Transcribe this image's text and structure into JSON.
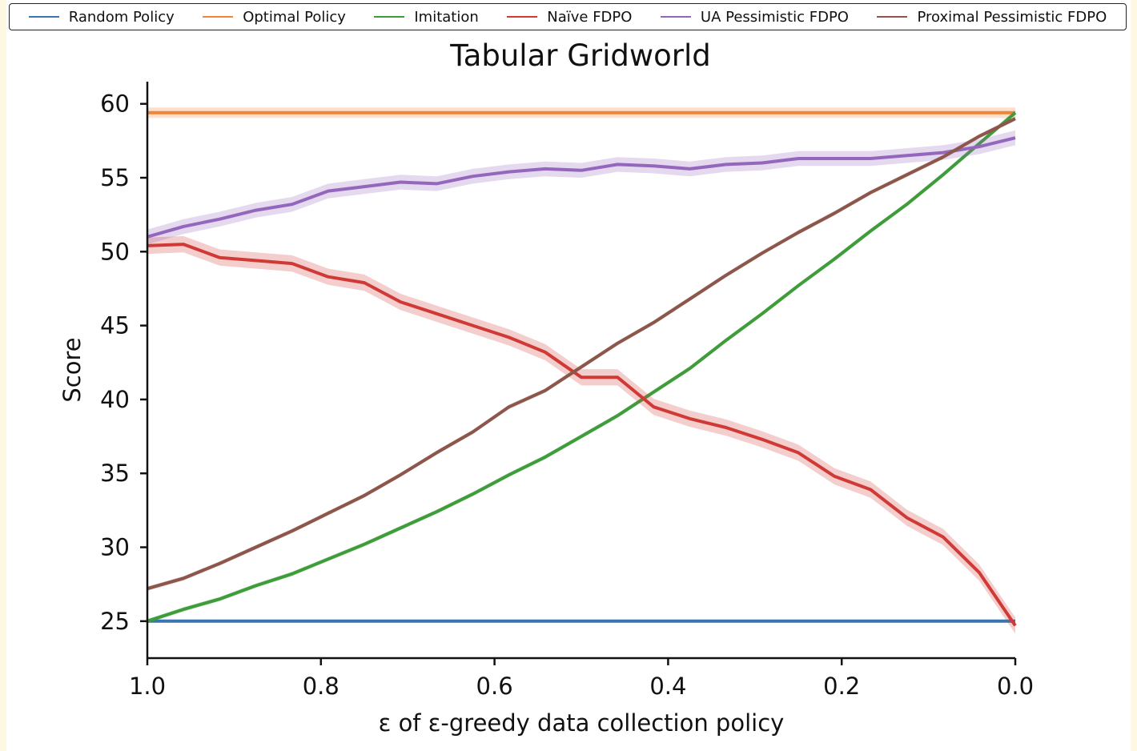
{
  "chart_data": {
    "type": "line",
    "title": "Tabular Gridworld",
    "xlabel": "ε of ε-greedy data collection policy",
    "ylabel": "Score",
    "xlim": [
      1.0,
      0.0
    ],
    "ylim": [
      22.5,
      61.5
    ],
    "xticks": [
      1.0,
      0.8,
      0.6,
      0.4,
      0.2,
      0.0
    ],
    "xtick_labels": [
      "1.0",
      "0.8",
      "0.6",
      "0.4",
      "0.2",
      "0.0"
    ],
    "yticks": [
      25,
      30,
      35,
      40,
      45,
      50,
      55,
      60
    ],
    "ytick_labels": [
      "25",
      "30",
      "35",
      "40",
      "45",
      "50",
      "55",
      "60"
    ],
    "grid": false,
    "legend_position": "top",
    "x": [
      1.0,
      0.9583,
      0.9167,
      0.875,
      0.8333,
      0.7917,
      0.75,
      0.7083,
      0.6667,
      0.625,
      0.5833,
      0.5417,
      0.5,
      0.4583,
      0.4167,
      0.375,
      0.3333,
      0.2917,
      0.25,
      0.2083,
      0.1667,
      0.125,
      0.0833,
      0.0417,
      0.0
    ],
    "series": [
      {
        "name": "Random Policy",
        "color": "#3a75b0",
        "band": 0.1,
        "values": [
          25,
          25,
          25,
          25,
          25,
          25,
          25,
          25,
          25,
          25,
          25,
          25,
          25,
          25,
          25,
          25,
          25,
          25,
          25,
          25,
          25,
          25,
          25,
          25,
          25
        ]
      },
      {
        "name": "Optimal Policy",
        "color": "#ef8537",
        "band": 0.35,
        "values": [
          59.4,
          59.4,
          59.4,
          59.4,
          59.4,
          59.4,
          59.4,
          59.4,
          59.4,
          59.4,
          59.4,
          59.4,
          59.4,
          59.4,
          59.4,
          59.4,
          59.4,
          59.4,
          59.4,
          59.4,
          59.4,
          59.4,
          59.4,
          59.4,
          59.4
        ]
      },
      {
        "name": "Imitation",
        "color": "#3f9c3a",
        "band": 0.15,
        "values": [
          25.0,
          25.8,
          26.5,
          27.4,
          28.2,
          29.2,
          30.2,
          31.3,
          32.4,
          33.6,
          34.9,
          36.1,
          37.5,
          38.9,
          40.5,
          42.1,
          44.0,
          45.8,
          47.7,
          49.5,
          51.4,
          53.2,
          55.2,
          57.3,
          59.4
        ]
      },
      {
        "name": "Naïve FDPO",
        "color": "#d03a36",
        "band": 0.55,
        "values": [
          50.4,
          50.5,
          49.6,
          49.4,
          49.2,
          48.3,
          47.9,
          46.6,
          45.8,
          45.0,
          44.2,
          43.2,
          41.5,
          41.5,
          39.5,
          38.7,
          38.1,
          37.3,
          36.4,
          34.8,
          33.9,
          32.0,
          30.7,
          28.3,
          24.7
        ]
      },
      {
        "name": "UA Pessimistic FDPO",
        "color": "#9467bd",
        "band": 0.5,
        "values": [
          51.0,
          51.7,
          52.2,
          52.8,
          53.2,
          54.1,
          54.4,
          54.7,
          54.6,
          55.1,
          55.4,
          55.6,
          55.5,
          55.9,
          55.8,
          55.6,
          55.9,
          56.0,
          56.3,
          56.3,
          56.3,
          56.5,
          56.7,
          57.1,
          57.7
        ]
      },
      {
        "name": "Proximal Pessimistic FDPO",
        "color": "#8c564b",
        "band": 0.15,
        "values": [
          27.2,
          27.9,
          28.9,
          30.0,
          31.1,
          32.3,
          33.5,
          34.9,
          36.4,
          37.8,
          39.5,
          40.6,
          42.2,
          43.8,
          45.2,
          46.8,
          48.4,
          49.9,
          51.3,
          52.6,
          54.0,
          55.2,
          56.4,
          57.8,
          59.0
        ]
      }
    ]
  }
}
